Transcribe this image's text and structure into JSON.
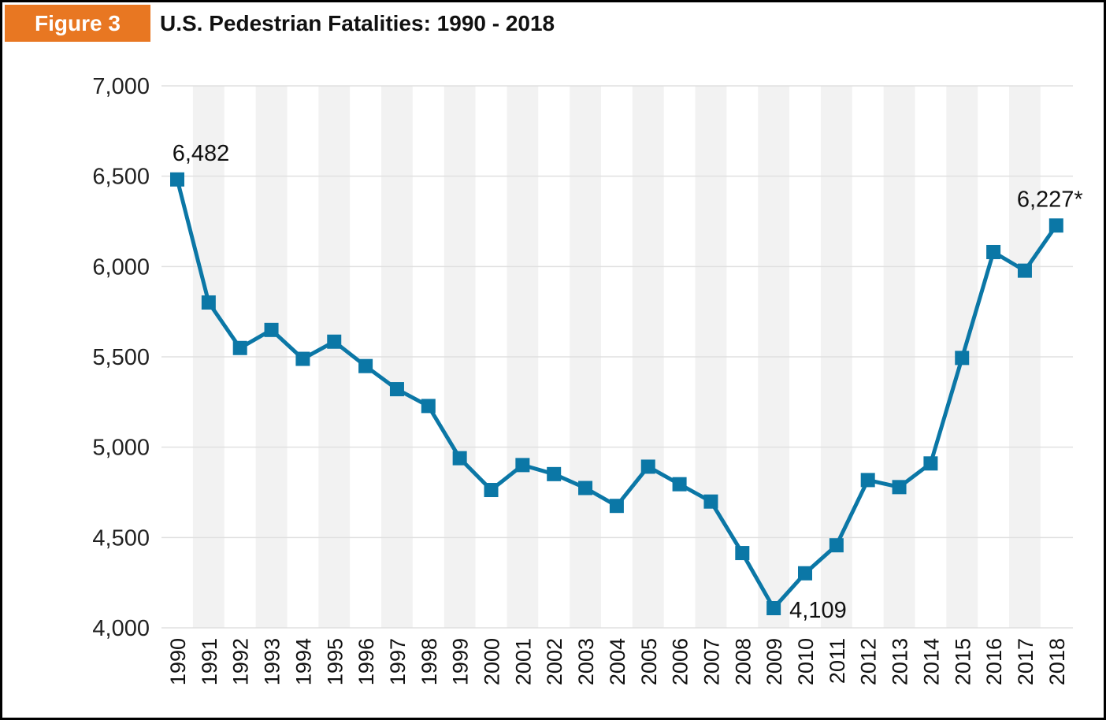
{
  "header": {
    "figure_label": "Figure 3",
    "title": "U.S. Pedestrian Fatalities: 1990 - 2018"
  },
  "colors": {
    "accent": "#e87722",
    "line": "#0b77a6",
    "band": "#f2f2f2",
    "grid": "#e0e0e0"
  },
  "chart_data": {
    "type": "line",
    "title": "U.S. Pedestrian Fatalities: 1990 - 2018",
    "xlabel": "",
    "ylabel": "",
    "categories": [
      "1990",
      "1991",
      "1992",
      "1993",
      "1994",
      "1995",
      "1996",
      "1997",
      "1998",
      "1999",
      "2000",
      "2001",
      "2002",
      "2003",
      "2004",
      "2005",
      "2006",
      "2007",
      "2008",
      "2009",
      "2010",
      "2011",
      "2012",
      "2013",
      "2014",
      "2015",
      "2016",
      "2017",
      "2018"
    ],
    "series": [
      {
        "values": [
          6482,
          5801,
          5549,
          5649,
          5489,
          5584,
          5449,
          5321,
          5228,
          4939,
          4763,
          4901,
          4851,
          4774,
          4675,
          4892,
          4795,
          4699,
          4414,
          4109,
          4302,
          4457,
          4818,
          4779,
          4910,
          5494,
          6080,
          5977,
          6227
        ]
      }
    ],
    "ylim": [
      4000,
      7000
    ],
    "yticks": [
      4000,
      4500,
      5000,
      5500,
      6000,
      6500,
      7000
    ],
    "ytick_labels": [
      "4,000",
      "4,500",
      "5,000",
      "5,500",
      "6,000",
      "6,500",
      "7,000"
    ],
    "grid": true,
    "alternating_bands": true,
    "annotations": [
      {
        "index": 0,
        "text": "6,482",
        "position": "above"
      },
      {
        "index": 19,
        "text": "4,109",
        "position": "right"
      },
      {
        "index": 28,
        "text": "6,227*",
        "position": "above"
      }
    ]
  }
}
